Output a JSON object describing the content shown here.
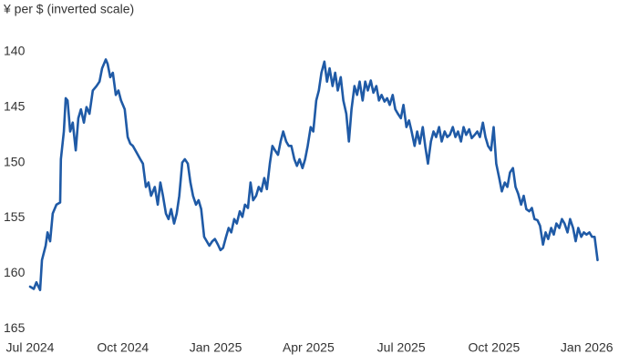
{
  "chart_data": {
    "type": "line",
    "y_label": "¥ per $ (inverted scale)",
    "color": "#1f5aa6",
    "inverted": true,
    "grid": false,
    "xlim": [
      2024.5,
      2026.04
    ],
    "ylim": [
      137.8,
      165.3
    ],
    "yticks": [
      140,
      145,
      150,
      155,
      160,
      165
    ],
    "xticks": [
      {
        "value": 2024.5,
        "label": "Jul 2024"
      },
      {
        "value": 2024.75,
        "label": "Oct 2024"
      },
      {
        "value": 2025,
        "label": "Jan 2025"
      },
      {
        "value": 2025.25,
        "label": "Apr 2025"
      },
      {
        "value": 2025.5,
        "label": "Jul 2025"
      },
      {
        "value": 2025.75,
        "label": "Oct 2025"
      },
      {
        "value": 2026,
        "label": "Jan 2026"
      }
    ],
    "x": [
      2024.5,
      2024.51,
      2024.517,
      2024.527,
      2024.532,
      2024.542,
      2024.547,
      2024.554,
      2024.561,
      2024.571,
      2024.581,
      2024.583,
      2024.591,
      2024.596,
      2024.601,
      2024.608,
      2024.615,
      2024.623,
      2024.63,
      2024.637,
      2024.645,
      2024.652,
      2024.66,
      2024.669,
      2024.679,
      2024.687,
      2024.694,
      2024.704,
      2024.709,
      2024.716,
      2024.723,
      2024.731,
      2024.738,
      2024.745,
      2024.755,
      2024.763,
      2024.77,
      2024.777,
      2024.787,
      2024.797,
      2024.804,
      2024.812,
      2024.819,
      2024.826,
      2024.836,
      2024.844,
      2024.851,
      2024.858,
      2024.866,
      2024.873,
      2024.88,
      2024.888,
      2024.895,
      2024.902,
      2024.91,
      2024.917,
      2024.925,
      2024.932,
      2024.939,
      2024.947,
      2024.954,
      2024.961,
      2024.969,
      2024.976,
      2024.983,
      2024.991,
      2024.998,
      2025.006,
      2025.013,
      2025.02,
      2025.028,
      2025.035,
      2025.042,
      2025.05,
      2025.057,
      2025.065,
      2025.072,
      2025.079,
      2025.087,
      2025.094,
      2025.101,
      2025.109,
      2025.116,
      2025.123,
      2025.131,
      2025.138,
      2025.146,
      2025.153,
      2025.16,
      2025.168,
      2025.175,
      2025.182,
      2025.19,
      2025.197,
      2025.204,
      2025.212,
      2025.219,
      2025.226,
      2025.234,
      2025.241,
      2025.248,
      2025.256,
      2025.263,
      2025.271,
      2025.278,
      2025.285,
      2025.293,
      2025.3,
      2025.307,
      2025.315,
      2025.322,
      2025.329,
      2025.337,
      2025.344,
      2025.352,
      2025.359,
      2025.366,
      2025.374,
      2025.381,
      2025.388,
      2025.396,
      2025.403,
      2025.41,
      2025.418,
      2025.425,
      2025.433,
      2025.44,
      2025.447,
      2025.455,
      2025.462,
      2025.469,
      2025.477,
      2025.484,
      2025.491,
      2025.499,
      2025.506,
      2025.514,
      2025.521,
      2025.528,
      2025.536,
      2025.543,
      2025.55,
      2025.558,
      2025.565,
      2025.572,
      2025.58,
      2025.587,
      2025.594,
      2025.602,
      2025.609,
      2025.617,
      2025.624,
      2025.631,
      2025.639,
      2025.646,
      2025.653,
      2025.661,
      2025.668,
      2025.675,
      2025.683,
      2025.69,
      2025.698,
      2025.705,
      2025.712,
      2025.72,
      2025.727,
      2025.734,
      2025.742,
      2025.749,
      2025.756,
      2025.764,
      2025.771,
      2025.779,
      2025.786,
      2025.793,
      2025.801,
      2025.808,
      2025.815,
      2025.823,
      2025.83,
      2025.837,
      2025.845,
      2025.852,
      2025.859,
      2025.867,
      2025.874,
      2025.882,
      2025.889,
      2025.896,
      2025.904,
      2025.911,
      2025.918,
      2025.926,
      2025.933,
      2025.94,
      2025.948,
      2025.955,
      2025.963,
      2025.97,
      2025.977,
      2025.985,
      2025.992,
      2025.999,
      2026.007,
      2026.014,
      2026.021,
      2026.029
    ],
    "values": [
      161.2,
      161.4,
      160.8,
      161.5,
      158.8,
      157.5,
      156.3,
      157.1,
      154.6,
      153.8,
      153.6,
      149.7,
      147.2,
      144.2,
      144.4,
      147.2,
      146.4,
      148.9,
      146.0,
      145.2,
      146.4,
      145.0,
      145.6,
      143.5,
      143.1,
      142.7,
      141.5,
      140.7,
      141.1,
      142.3,
      141.9,
      143.9,
      143.5,
      144.4,
      145.2,
      147.7,
      148.3,
      148.5,
      149.1,
      149.7,
      150.1,
      152.2,
      151.8,
      153.0,
      152.2,
      153.8,
      151.8,
      153.0,
      154.6,
      155.1,
      154.2,
      155.5,
      154.6,
      153.0,
      150.0,
      149.7,
      150.1,
      151.8,
      153.0,
      153.8,
      153.4,
      154.2,
      156.7,
      157.1,
      157.5,
      157.1,
      156.9,
      157.4,
      157.9,
      157.7,
      156.7,
      155.9,
      156.3,
      155.1,
      155.5,
      154.4,
      154.9,
      153.8,
      154.1,
      151.8,
      153.4,
      153.0,
      152.2,
      152.6,
      151.4,
      152.4,
      150.1,
      148.5,
      148.9,
      149.3,
      148.1,
      147.2,
      148.1,
      148.5,
      148.5,
      149.7,
      150.3,
      149.7,
      150.5,
      149.7,
      148.5,
      146.8,
      147.2,
      144.4,
      143.5,
      141.9,
      140.9,
      142.7,
      141.5,
      143.1,
      141.9,
      143.5,
      142.3,
      144.4,
      145.6,
      148.1,
      145.2,
      143.1,
      143.9,
      142.7,
      144.4,
      142.7,
      143.5,
      142.6,
      143.7,
      143.1,
      144.4,
      143.9,
      144.5,
      144.2,
      144.8,
      143.9,
      145.2,
      145.6,
      146.0,
      144.8,
      146.8,
      146.2,
      147.2,
      148.5,
      147.2,
      148.3,
      146.8,
      148.6,
      150.1,
      148.1,
      147.2,
      147.7,
      146.8,
      148.1,
      147.2,
      147.7,
      147.5,
      146.8,
      147.7,
      147.2,
      148.1,
      146.8,
      147.5,
      147.0,
      147.8,
      147.5,
      147.2,
      147.7,
      146.4,
      147.7,
      148.5,
      148.9,
      146.8,
      150.1,
      151.4,
      152.6,
      151.8,
      152.2,
      150.9,
      150.5,
      152.2,
      152.8,
      153.8,
      153.0,
      154.2,
      154.4,
      154.1,
      155.1,
      155.2,
      155.7,
      157.4,
      156.3,
      156.9,
      155.9,
      156.5,
      155.5,
      155.9,
      155.1,
      155.5,
      156.3,
      155.1,
      155.9,
      157.1,
      155.9,
      156.7,
      156.3,
      156.5,
      156.3,
      156.7,
      156.7,
      158.8
    ]
  }
}
